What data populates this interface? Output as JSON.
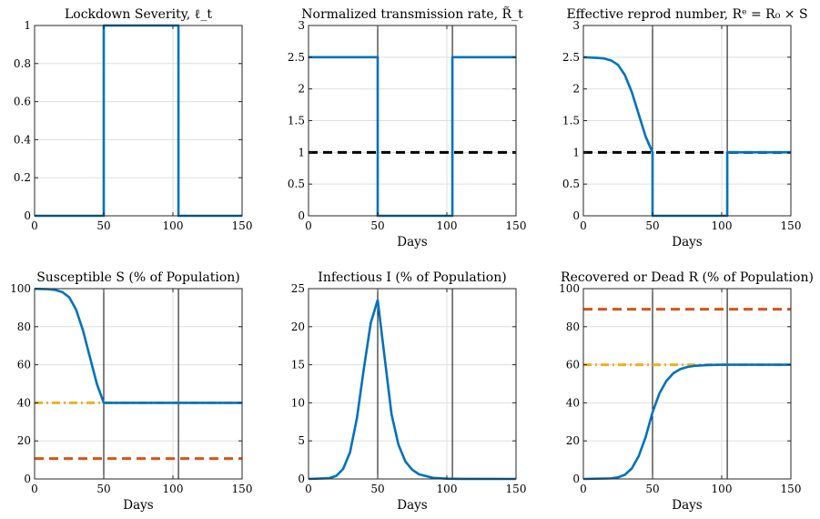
{
  "figure": {
    "colors": {
      "blue": "#0072BD",
      "orange": "#D95319",
      "yellow": "#EDB120",
      "black": "#000000",
      "grid": "#DFDFDF"
    }
  },
  "chart_data": [
    {
      "type": "line",
      "title": "Lockdown Severity, ℓ_t",
      "xlabel": "",
      "ylabel": "",
      "xlim": [
        0,
        150
      ],
      "ylim": [
        0,
        1
      ],
      "xticks": [
        0,
        50,
        100,
        150
      ],
      "yticks": [
        0,
        0.2,
        0.4,
        0.6,
        0.8,
        1
      ],
      "grid": "horizontal",
      "vlines": [
        50,
        104
      ],
      "hlines": [],
      "series": [
        {
          "color": "blue",
          "style": "solid",
          "x": [
            0,
            50,
            50,
            104,
            104,
            150
          ],
          "y": [
            0,
            0,
            1,
            1,
            0,
            0
          ]
        }
      ]
    },
    {
      "type": "line",
      "title": "Normalized transmission rate, R̃_t",
      "xlabel": "Days",
      "ylabel": "",
      "xlim": [
        0,
        150
      ],
      "ylim": [
        0,
        3
      ],
      "xticks": [
        0,
        50,
        100,
        150
      ],
      "yticks": [
        0,
        0.5,
        1,
        1.5,
        2,
        2.5,
        3
      ],
      "grid": "horizontal",
      "vlines": [
        50,
        104
      ],
      "hlines": [
        {
          "y": 1,
          "color": "black",
          "style": "dashed"
        }
      ],
      "series": [
        {
          "color": "blue",
          "style": "solid",
          "x": [
            0,
            50,
            50,
            104,
            104,
            150
          ],
          "y": [
            2.5,
            2.5,
            0,
            0,
            2.5,
            2.5
          ]
        }
      ]
    },
    {
      "type": "line",
      "title": "Effective reprod number, Rᵉ = R₀ × S",
      "xlabel": "Days",
      "ylabel": "",
      "xlim": [
        0,
        150
      ],
      "ylim": [
        0,
        3
      ],
      "xticks": [
        0,
        50,
        100,
        150
      ],
      "yticks": [
        0,
        0.5,
        1,
        1.5,
        2,
        2.5,
        3
      ],
      "grid": "horizontal",
      "vlines": [
        50,
        104
      ],
      "hlines": [
        {
          "y": 1,
          "color": "black",
          "style": "dashed"
        }
      ],
      "series": [
        {
          "color": "blue",
          "style": "solid",
          "x": [
            0,
            10,
            15,
            20,
            25,
            30,
            35,
            40,
            45,
            50,
            50,
            104,
            104,
            150
          ],
          "y": [
            2.5,
            2.49,
            2.48,
            2.45,
            2.38,
            2.22,
            1.95,
            1.6,
            1.25,
            1.0,
            0,
            0,
            1.0,
            1.0
          ]
        }
      ]
    },
    {
      "type": "line",
      "title": "Susceptible S (% of Population)",
      "xlabel": "Days",
      "ylabel": "",
      "xlim": [
        0,
        150
      ],
      "ylim": [
        0,
        100
      ],
      "xticks": [
        0,
        50,
        100,
        150
      ],
      "yticks": [
        0,
        20,
        40,
        60,
        80,
        100
      ],
      "grid": "horizontal",
      "vlines": [
        50,
        104
      ],
      "hlines": [
        {
          "y": 40,
          "color": "yellow",
          "style": "dashdot"
        },
        {
          "y": 10.7,
          "color": "orange",
          "style": "dashed"
        }
      ],
      "series": [
        {
          "color": "blue",
          "style": "solid",
          "x": [
            0,
            10,
            15,
            20,
            25,
            30,
            35,
            40,
            45,
            50,
            150
          ],
          "y": [
            99.9,
            99.7,
            99.3,
            98.2,
            95.5,
            89,
            78,
            64,
            50,
            40,
            40
          ]
        }
      ]
    },
    {
      "type": "line",
      "title": "Infectious I (% of Population)",
      "xlabel": "Days",
      "ylabel": "",
      "xlim": [
        0,
        150
      ],
      "ylim": [
        0,
        25
      ],
      "xticks": [
        0,
        50,
        100,
        150
      ],
      "yticks": [
        0,
        5,
        10,
        15,
        20,
        25
      ],
      "grid": "horizontal",
      "vlines": [
        50,
        104
      ],
      "hlines": [],
      "series": [
        {
          "color": "blue",
          "style": "solid",
          "x": [
            0,
            15,
            20,
            25,
            30,
            35,
            40,
            45,
            50,
            55,
            60,
            65,
            70,
            75,
            80,
            90,
            100,
            110,
            150
          ],
          "y": [
            0,
            0.1,
            0.4,
            1.3,
            3.5,
            8,
            14.5,
            20.5,
            23.5,
            16,
            8.5,
            4.5,
            2.3,
            1.2,
            0.6,
            0.15,
            0.04,
            0.01,
            0
          ]
        }
      ]
    },
    {
      "type": "line",
      "title": "Recovered or Dead R (% of Population)",
      "xlabel": "Days",
      "ylabel": "",
      "xlim": [
        0,
        150
      ],
      "ylim": [
        0,
        100
      ],
      "xticks": [
        0,
        50,
        100,
        150
      ],
      "yticks": [
        0,
        20,
        40,
        60,
        80,
        100
      ],
      "grid": "horizontal",
      "vlines": [
        50,
        104
      ],
      "hlines": [
        {
          "y": 60,
          "color": "yellow",
          "style": "dashdot"
        },
        {
          "y": 89.2,
          "color": "orange",
          "style": "dashed"
        }
      ],
      "series": [
        {
          "color": "blue",
          "style": "solid",
          "x": [
            0,
            20,
            25,
            30,
            35,
            40,
            45,
            50,
            55,
            60,
            65,
            70,
            75,
            80,
            90,
            100,
            150
          ],
          "y": [
            0,
            0.3,
            0.8,
            2.2,
            5.5,
            12,
            22,
            35,
            45,
            51.5,
            55.5,
            57.7,
            58.8,
            59.4,
            59.85,
            60,
            60
          ]
        }
      ]
    }
  ]
}
